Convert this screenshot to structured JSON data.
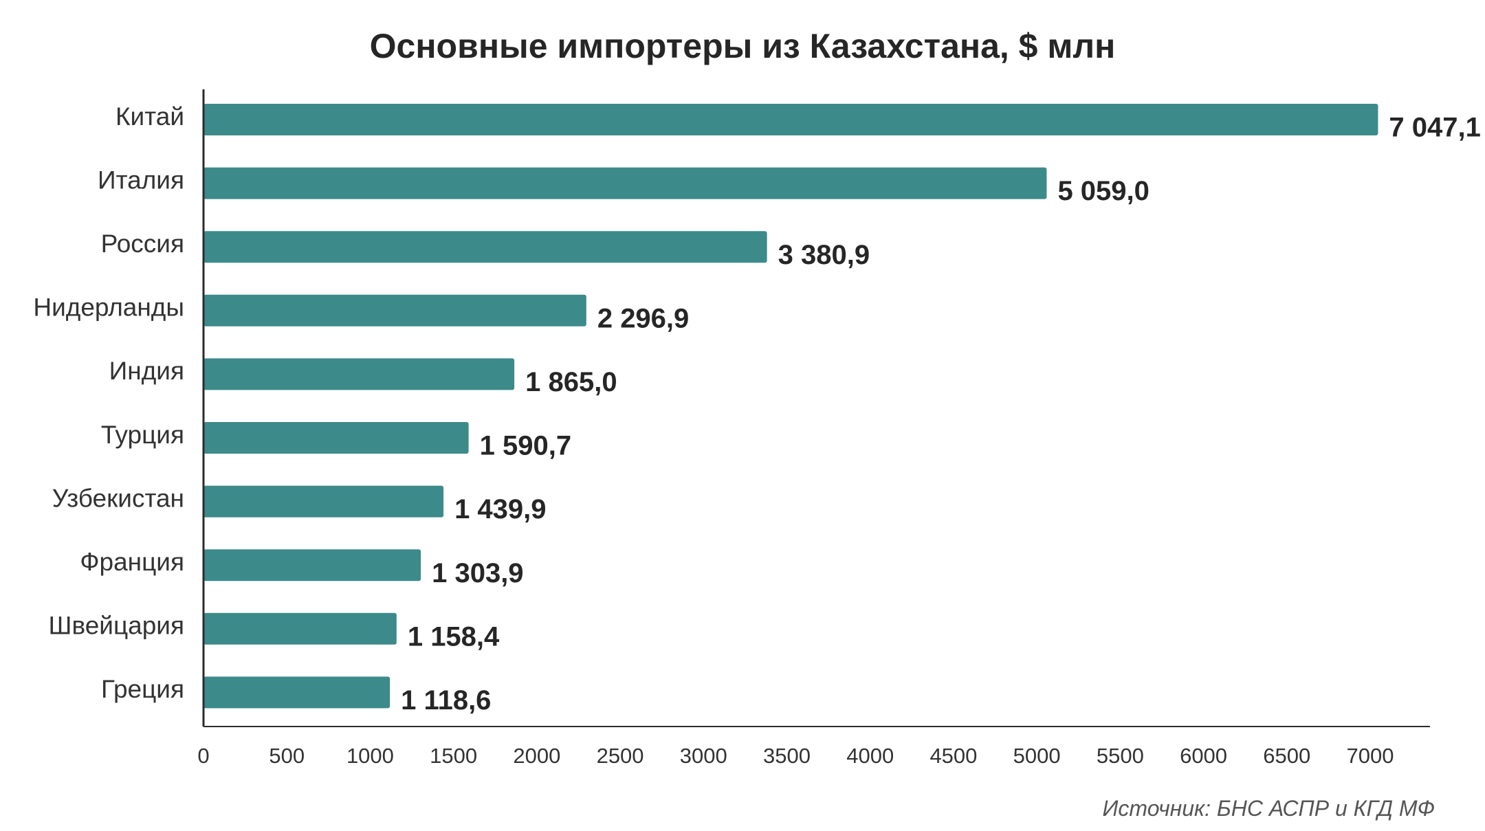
{
  "chart_data": {
    "type": "bar",
    "orientation": "horizontal",
    "title": "Основные импортеры из Казахстана, $ млн",
    "categories": [
      "Китай",
      "Италия",
      "Россия",
      "Нидерланды",
      "Индия",
      "Турция",
      "Узбекистан",
      "Франция",
      "Швейцария",
      "Греция"
    ],
    "values": [
      7047.1,
      5059.0,
      3380.9,
      2296.9,
      1865.0,
      1590.7,
      1439.9,
      1303.9,
      1158.4,
      1118.6
    ],
    "value_labels": [
      "7 047,1",
      "5 059,0",
      "3 380,9",
      "2 296,9",
      "1 865,0",
      "1 590,7",
      "1 439,9",
      "1 303,9",
      "1 158,4",
      "1 118,6"
    ],
    "xlim": [
      0,
      7000
    ],
    "xticks": [
      0,
      500,
      1000,
      1500,
      2000,
      2500,
      3000,
      3500,
      4000,
      4500,
      5000,
      5500,
      6000,
      6500,
      7000
    ],
    "xlabel": "",
    "ylabel": "",
    "grid": false,
    "legend": "none",
    "bar_color": "#3d8a8a",
    "source": "Источник: БНС АСПР и КГД МФ"
  }
}
